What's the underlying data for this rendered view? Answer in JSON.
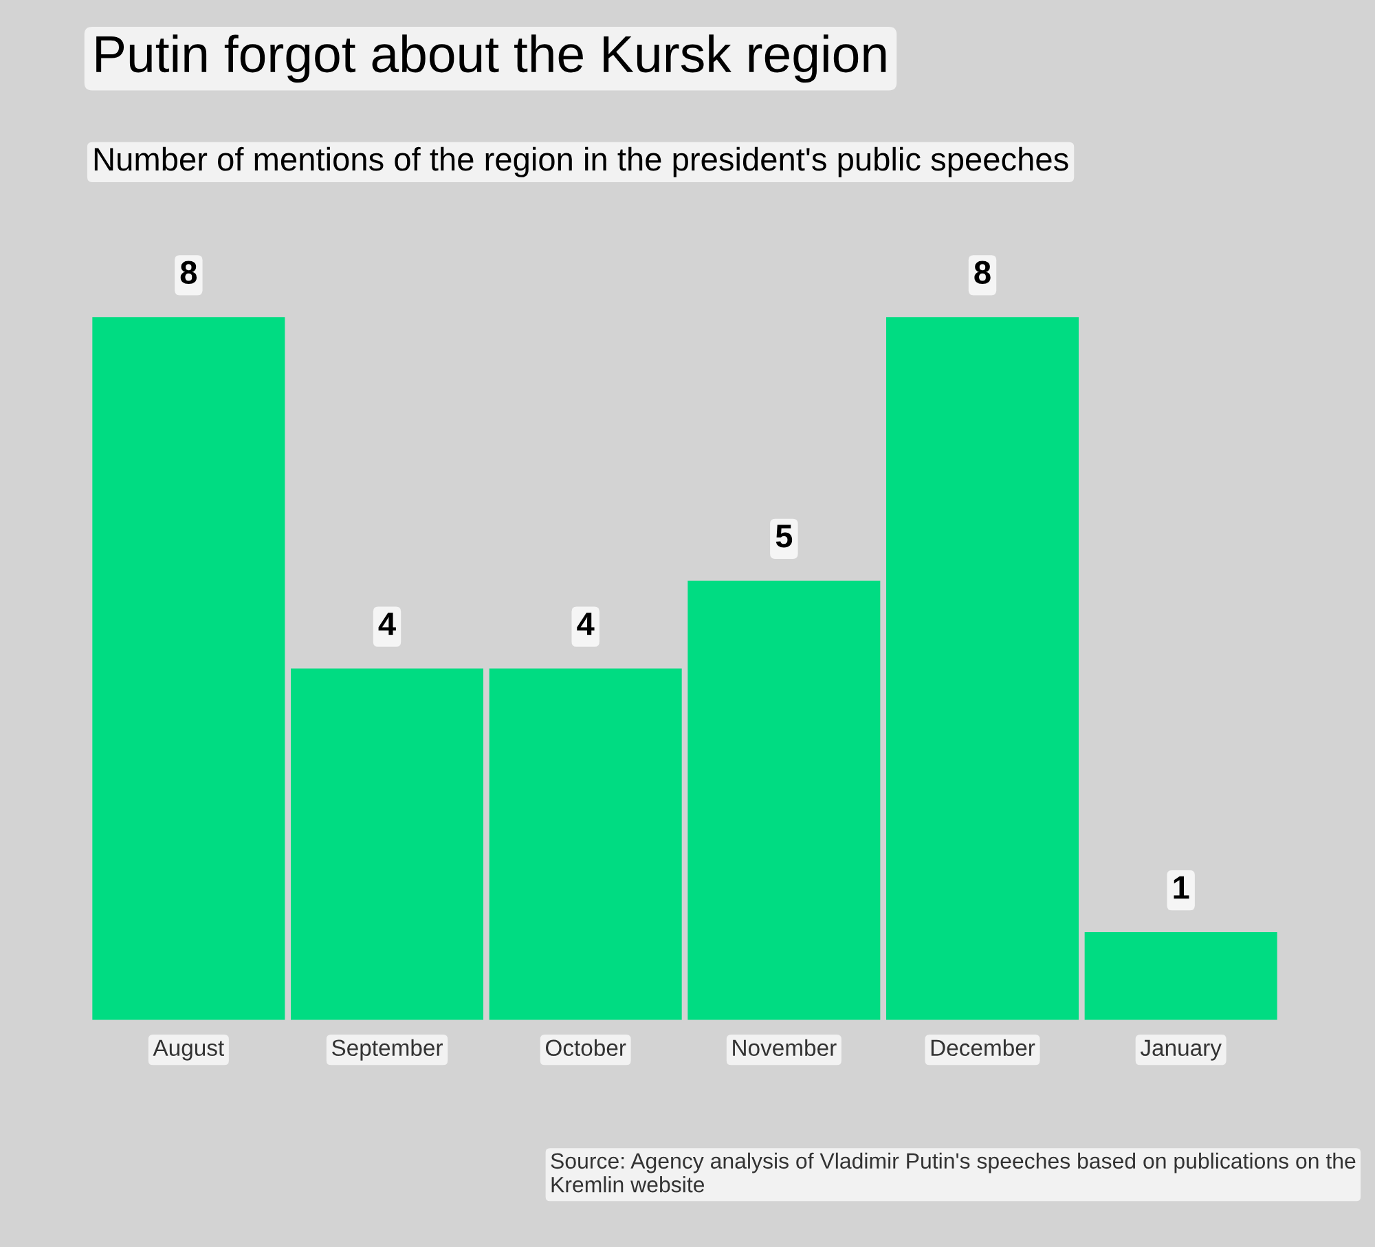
{
  "chart_data": {
    "type": "bar",
    "title": "Putin forgot about the Kursk region",
    "subtitle": "Number of mentions of the region in the president's public speeches",
    "categories": [
      "August",
      "September",
      "October",
      "November",
      "December",
      "January"
    ],
    "values": [
      8,
      4,
      4,
      5,
      8,
      1
    ],
    "color": "#00dc82",
    "data_labels": true,
    "grid": false,
    "legend": false,
    "annotations": [
      "Source: Agency analysis of Vladimir Putin's speeches based on publications on the Kremlin website"
    ]
  }
}
